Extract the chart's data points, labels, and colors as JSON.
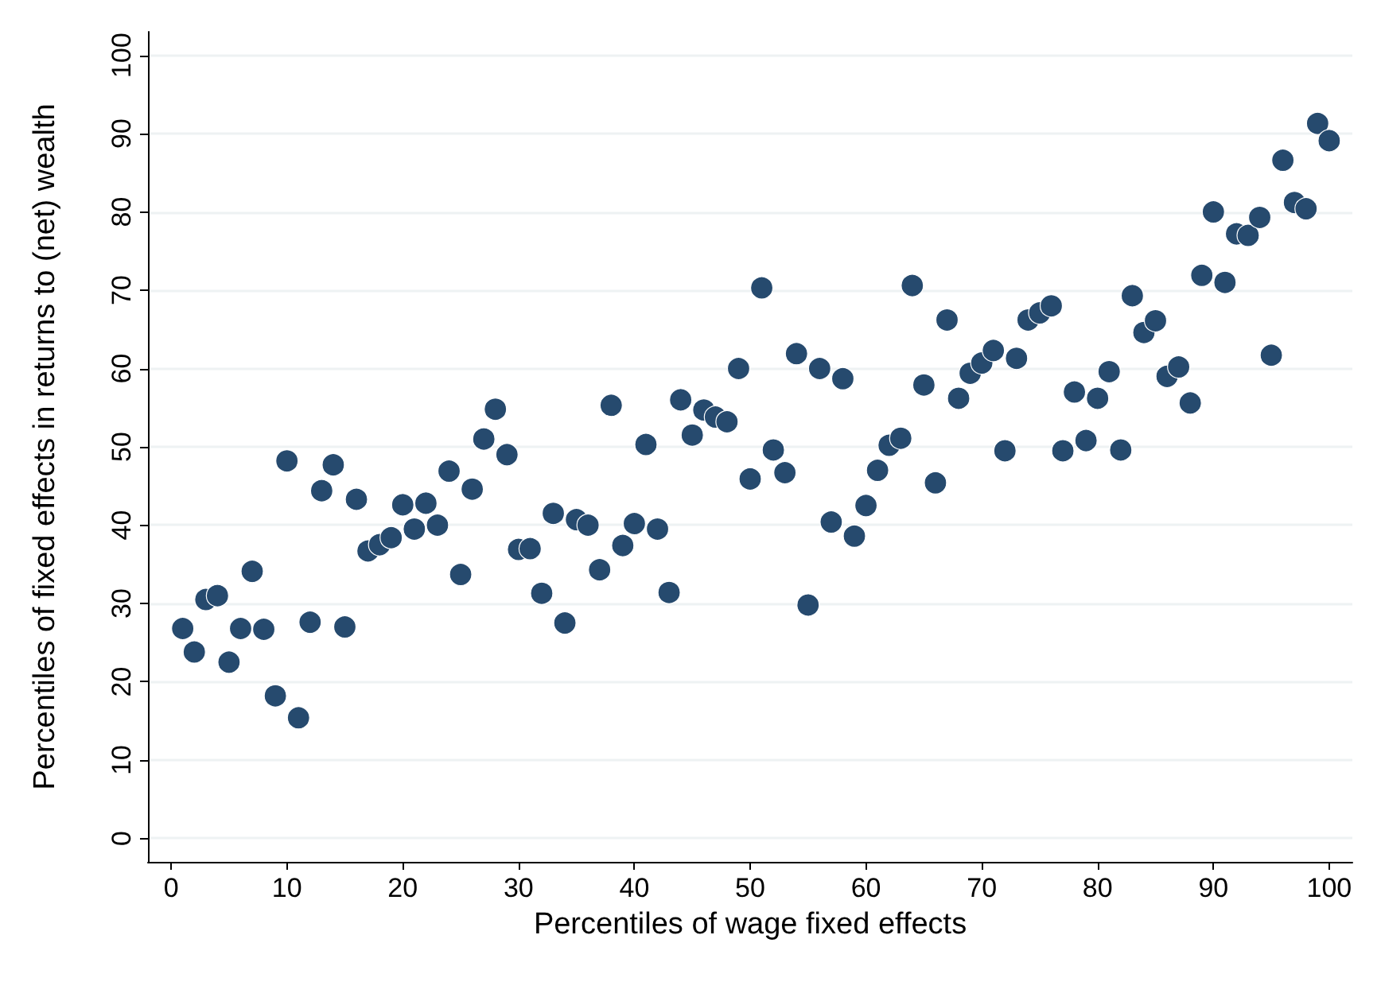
{
  "chart_data": {
    "type": "scatter",
    "xlabel": "Percentiles of wage fixed effects",
    "ylabel": "Percentiles of fixed effects in returns to (net) wealth",
    "x": [
      1,
      2,
      3,
      4,
      5,
      6,
      7,
      8,
      9,
      10,
      11,
      12,
      13,
      14,
      15,
      16,
      17,
      18,
      19,
      20,
      21,
      22,
      23,
      24,
      25,
      26,
      27,
      28,
      29,
      30,
      31,
      32,
      33,
      34,
      35,
      36,
      37,
      38,
      39,
      40,
      41,
      42,
      43,
      44,
      45,
      46,
      47,
      48,
      49,
      50,
      51,
      52,
      53,
      54,
      55,
      56,
      57,
      58,
      59,
      60,
      61,
      62,
      63,
      64,
      65,
      66,
      67,
      68,
      69,
      70,
      71,
      72,
      73,
      74,
      75,
      76,
      77,
      78,
      79,
      80,
      81,
      82,
      83,
      84,
      85,
      86,
      87,
      88,
      89,
      90,
      91,
      92,
      93,
      94,
      95,
      96,
      97,
      98,
      99,
      100
    ],
    "series": [
      {
        "color": "#264a6e",
        "values": [
          26.8,
          23.8,
          30.5,
          31,
          22.5,
          26.8,
          34.1,
          26.7,
          18.2,
          48.2,
          15.4,
          27.6,
          44.4,
          47.7,
          27,
          43.3,
          36.7,
          37.5,
          38.4,
          42.6,
          39.5,
          42.8,
          40,
          46.9,
          33.7,
          44.6,
          51,
          54.8,
          49,
          36.9,
          37,
          31.3,
          41.5,
          27.5,
          40.7,
          40,
          34.3,
          55.3,
          37.4,
          40.2,
          50.3,
          39.5,
          31.4,
          56,
          51.5,
          54.7,
          53.8,
          53.2,
          60,
          45.9,
          70.3,
          49.6,
          46.7,
          61.9,
          29.8,
          60,
          40.4,
          58.7,
          38.6,
          42.5,
          47,
          50.2,
          51.1,
          70.6,
          57.9,
          45.4,
          66.2,
          56.2,
          59.4,
          60.7,
          62.3,
          49.5,
          61.3,
          66.2,
          67.1,
          68,
          49.5,
          57,
          50.8,
          56.2,
          59.6,
          49.6,
          69.3,
          64.6,
          66.1,
          59,
          60.2,
          55.6,
          71.9,
          80,
          71,
          77.2,
          77,
          79.3,
          61.7,
          86.6,
          81.2,
          80.4,
          91.3,
          89.1
        ]
      }
    ],
    "xlim": [
      -2,
      102
    ],
    "ylim": [
      -3,
      103
    ],
    "xticks": [
      0,
      10,
      20,
      30,
      40,
      50,
      60,
      70,
      80,
      90,
      100
    ],
    "yticks": [
      0,
      10,
      20,
      30,
      40,
      50,
      60,
      70,
      80,
      90,
      100
    ],
    "grid": "y",
    "marker": "circle"
  }
}
